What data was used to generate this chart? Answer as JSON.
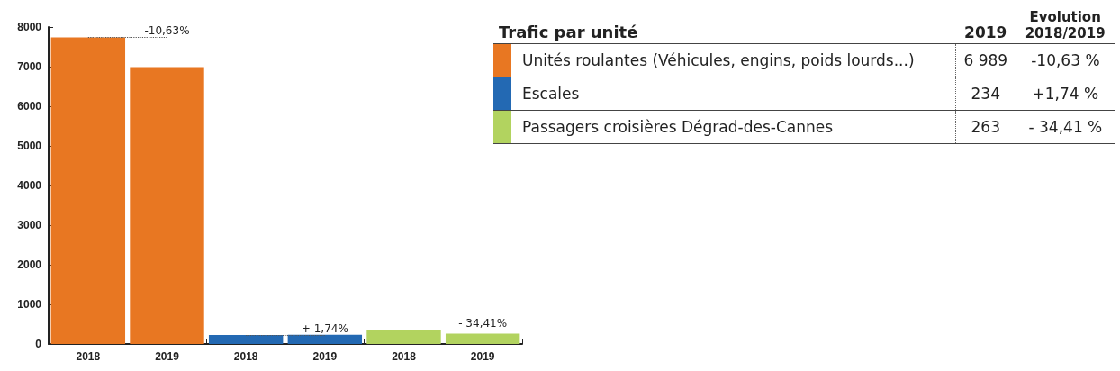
{
  "chart_data": {
    "type": "bar",
    "stacked": true,
    "legend": "right",
    "legend_title": "Trafic par unité",
    "grid": false,
    "categories": [
      "2018",
      "2019",
      "2018",
      "2019",
      "2018",
      "2019"
    ],
    "ylim": [
      0,
      8000
    ],
    "yticks": [
      0,
      1000,
      2000,
      3000,
      4000,
      5000,
      6000,
      7000,
      8000
    ],
    "series": [
      {
        "name": "Unités roulantes (Véhicules, engins, poids lourds...)",
        "color": "#e87722",
        "values": [
          7740,
          6989,
          null,
          null,
          null,
          null
        ]
      },
      {
        "name": "Escales",
        "color": "#2369b3",
        "values": [
          null,
          null,
          230,
          234,
          null,
          null
        ]
      },
      {
        "name": "Passagers croisières Dégrad-des-Cannes",
        "color": "#b2d35f",
        "values": [
          null,
          null,
          null,
          null,
          360,
          263
        ]
      }
    ],
    "annotations": [
      {
        "text": "-10,63%",
        "x": "2018",
        "y": 7740
      },
      {
        "text": "+ 1,74%",
        "y": 230
      },
      {
        "text": "- 34,41%",
        "y": 360
      },
      "2019",
      "Evolution\n2018/2019",
      "6 989",
      "234",
      "263",
      "-10,63 %",
      "+1,74 %",
      "- 34,41 %"
    ]
  }
}
